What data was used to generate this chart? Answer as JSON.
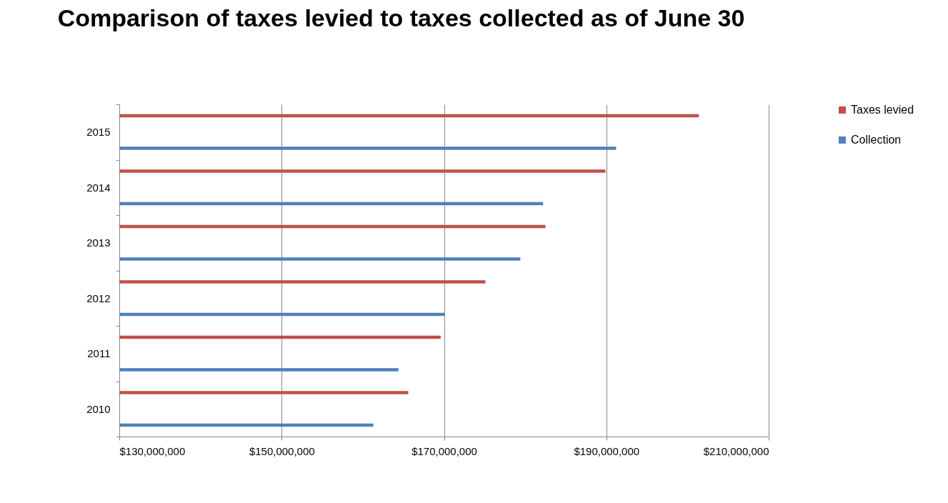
{
  "chart_data": {
    "type": "bar",
    "orientation": "horizontal",
    "title": "Comparison of taxes levied to taxes collected as of June 30",
    "categories": [
      "2015",
      "2014",
      "2013",
      "2012",
      "2011",
      "2010"
    ],
    "series": [
      {
        "name": "Taxes levied",
        "color": "#c0504d",
        "values": [
          201400000,
          189900000,
          182500000,
          175100000,
          169600000,
          165600000
        ]
      },
      {
        "name": "Collection",
        "color": "#4f81bd",
        "values": [
          191200000,
          182200000,
          179400000,
          170100000,
          164400000,
          161300000
        ]
      }
    ],
    "xlim": [
      130000000,
      210000000
    ],
    "xticks": [
      {
        "value": 130000000,
        "label": "$130,000,000"
      },
      {
        "value": 150000000,
        "label": "$150,000,000"
      },
      {
        "value": 170000000,
        "label": "$170,000,000"
      },
      {
        "value": 190000000,
        "label": "$190,000,000"
      },
      {
        "value": 210000000,
        "label": "$210,000,000"
      }
    ],
    "grid": "x",
    "legend": "right"
  }
}
